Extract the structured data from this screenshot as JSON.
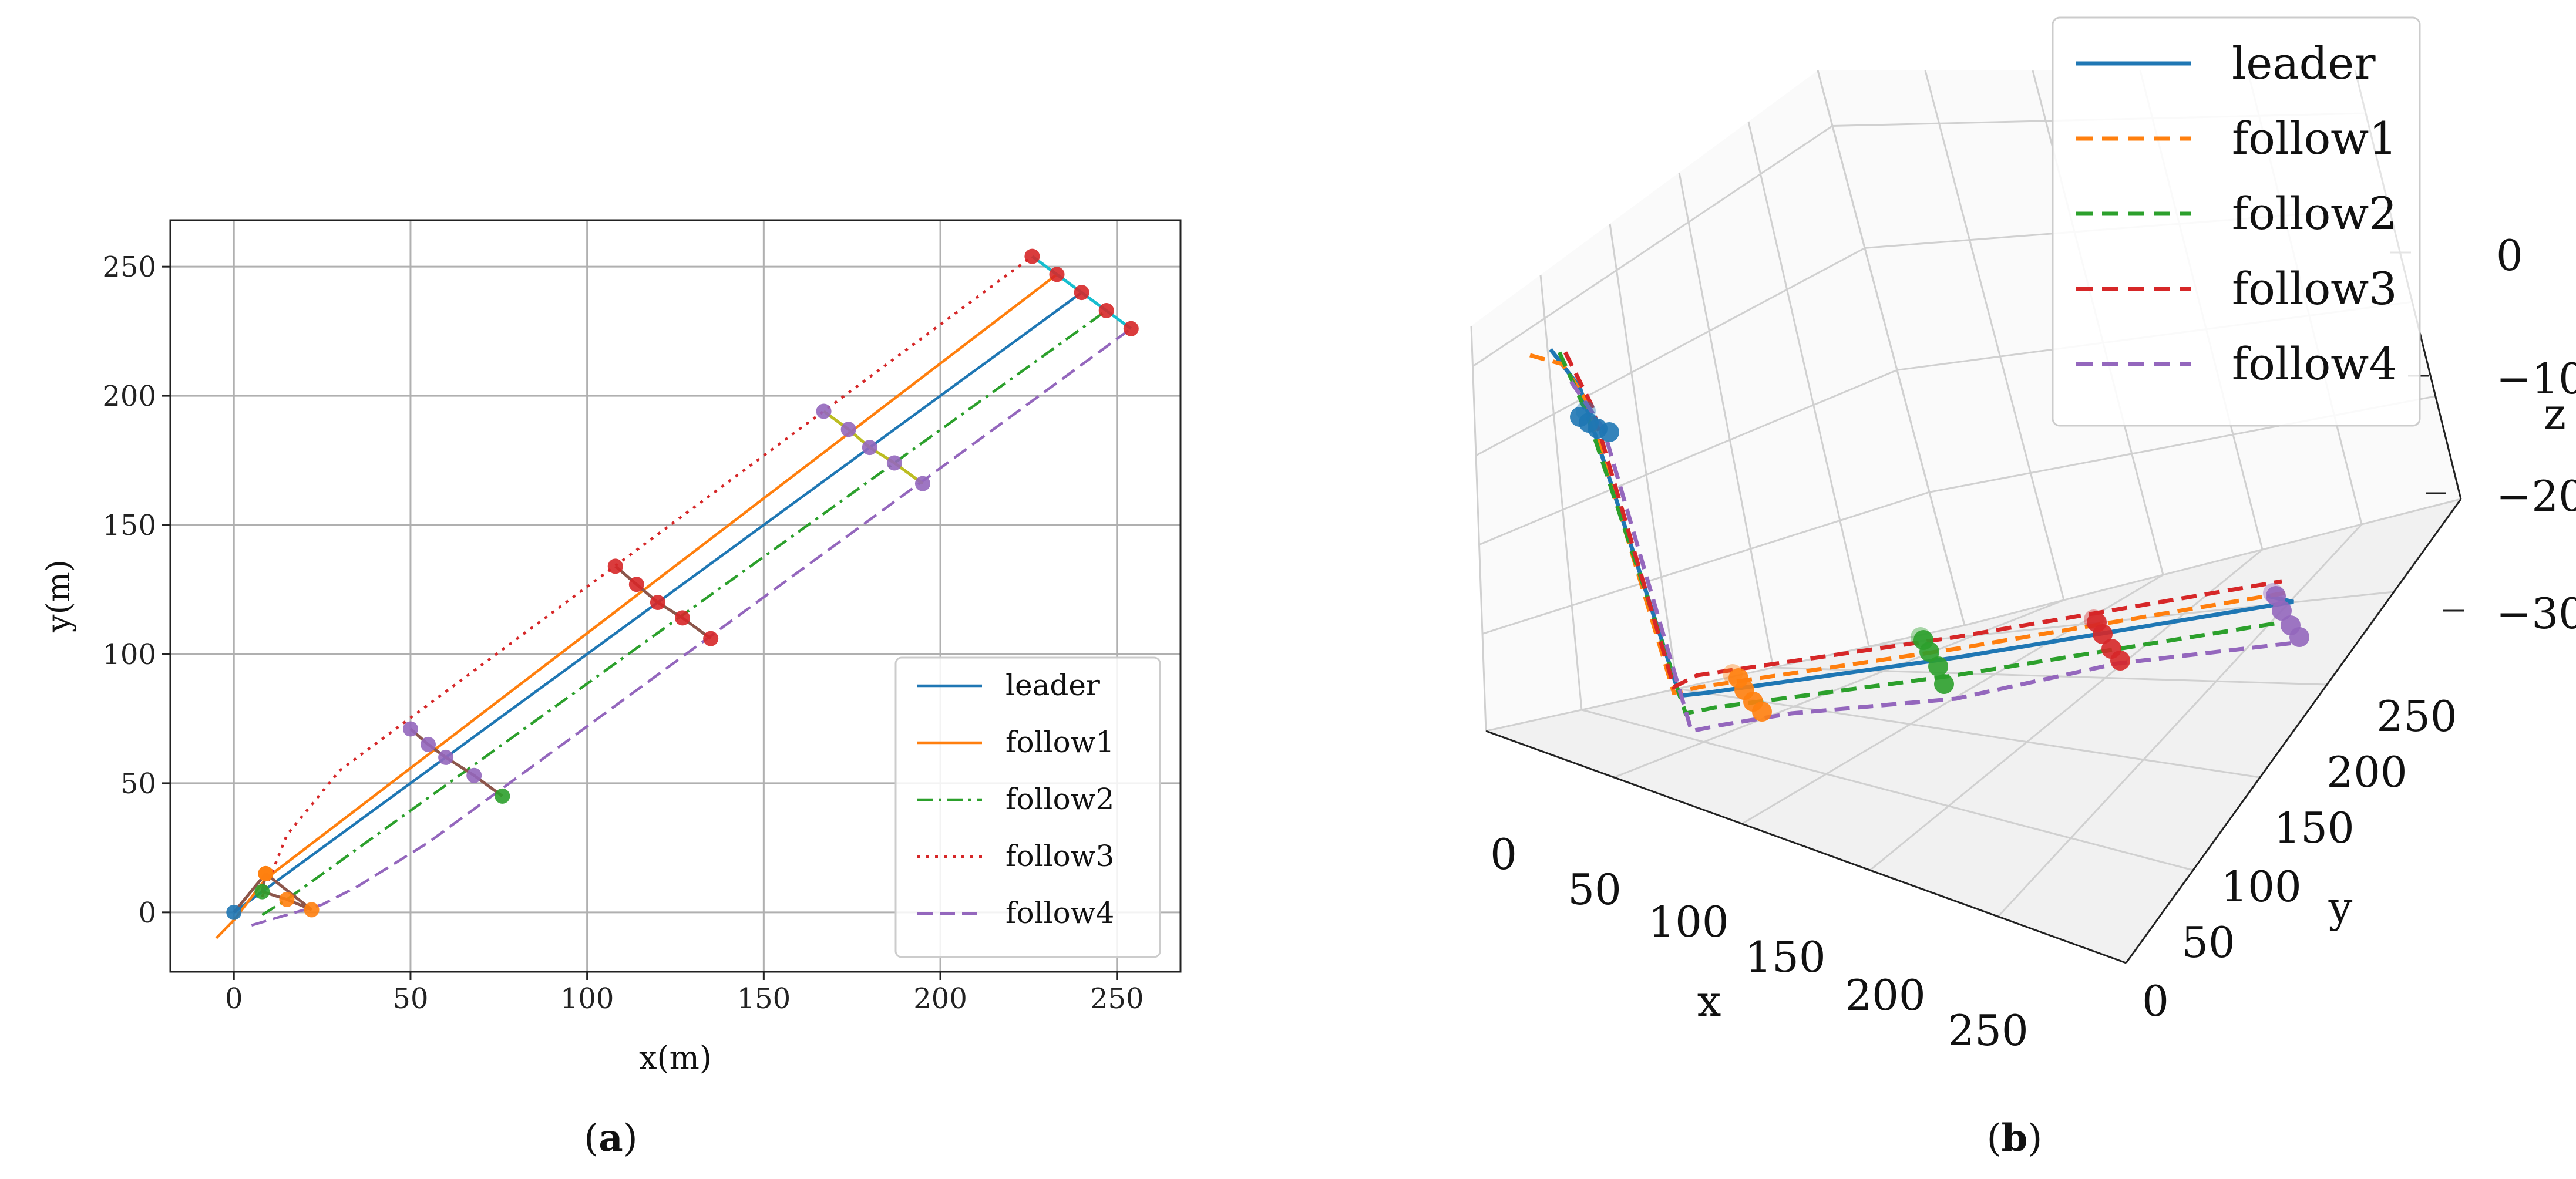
{
  "colors": {
    "leader": "#1f77b4",
    "follow1": "#ff7f0e",
    "follow2": "#2ca02c",
    "follow3": "#d62728",
    "follow4": "#9467bd",
    "brown": "#8c564b",
    "olive": "#bcbd22",
    "cyan": "#17becf",
    "grid": "#b0b0b0"
  },
  "chart_data": [
    {
      "type": "line",
      "panel": "(a)",
      "panel_letter": "a",
      "title": "",
      "xlabel": "x(m)",
      "ylabel": "y(m)",
      "xlim": [
        -18,
        268
      ],
      "ylim": [
        -23,
        268
      ],
      "xticks": [
        0,
        50,
        100,
        150,
        200,
        250
      ],
      "yticks": [
        0,
        50,
        100,
        150,
        200,
        250
      ],
      "grid": true,
      "legend_position": "lower-right",
      "series": [
        {
          "name": "leader",
          "style": "solid",
          "points": [
            [
              0,
              0
            ],
            [
              240,
              240
            ]
          ]
        },
        {
          "name": "follow1",
          "style": "solid",
          "points": [
            [
              -5,
              -10
            ],
            [
              0,
              -3
            ],
            [
              9,
              13
            ],
            [
              233,
              247
            ]
          ]
        },
        {
          "name": "follow2",
          "style": "dashdot",
          "points": [
            [
              8,
              -1
            ],
            [
              15,
              5
            ],
            [
              247,
              233
            ]
          ]
        },
        {
          "name": "follow3",
          "style": "dotted",
          "points": [
            [
              8,
              6
            ],
            [
              15,
              30
            ],
            [
              30,
              55
            ],
            [
              226,
              254
            ]
          ]
        },
        {
          "name": "follow4",
          "style": "dashed",
          "points": [
            [
              5,
              -5
            ],
            [
              25,
              3
            ],
            [
              35,
              10
            ],
            [
              55,
              27
            ],
            [
              254,
              226
            ]
          ]
        }
      ],
      "formation_markers": [
        {
          "color": "brown",
          "points": [
            [
              0,
              0
            ],
            [
              9,
              15
            ],
            [
              8,
              8
            ],
            [
              15,
              5
            ],
            [
              22,
              1
            ],
            [
              9,
              15
            ]
          ]
        },
        {
          "color": "brown",
          "points": [
            [
              50,
              71
            ],
            [
              55,
              65
            ],
            [
              60,
              60
            ],
            [
              68,
              53
            ],
            [
              76,
              45
            ]
          ]
        },
        {
          "color": "brown",
          "points": [
            [
              108,
              134
            ],
            [
              114,
              127
            ],
            [
              120,
              120
            ],
            [
              127,
              114
            ],
            [
              135,
              106
            ]
          ]
        },
        {
          "color": "olive",
          "points": [
            [
              167,
              194
            ],
            [
              174,
              187
            ],
            [
              180,
              180
            ],
            [
              187,
              174
            ],
            [
              195,
              166
            ]
          ]
        },
        {
          "color": "cyan",
          "points": [
            [
              226,
              254
            ],
            [
              233,
              247
            ],
            [
              240,
              240
            ],
            [
              247,
              233
            ],
            [
              254,
              226
            ]
          ]
        }
      ]
    },
    {
      "type": "line3d",
      "panel": "(b)",
      "panel_letter": "b",
      "xlabel": "x",
      "ylabel": "y",
      "zlabel": "z",
      "xticks": [
        0,
        50,
        100,
        150,
        200,
        250
      ],
      "yticks": [
        0,
        50,
        100,
        150,
        200,
        250
      ],
      "zticks": [
        0,
        -10,
        -20,
        -30
      ],
      "tick_labels": {
        "x": [
          "0",
          "50",
          "100",
          "150",
          "200",
          "250"
        ],
        "y": [
          "0",
          "50",
          "100",
          "150",
          "200",
          "250"
        ],
        "z": [
          "0",
          "−10",
          "−20",
          "−30"
        ]
      },
      "legend_position": "upper-right",
      "series": [
        {
          "name": "leader",
          "style": "solid"
        },
        {
          "name": "follow1",
          "style": "dashed"
        },
        {
          "name": "follow2",
          "style": "dashed"
        },
        {
          "name": "follow3",
          "style": "dashed"
        },
        {
          "name": "follow4",
          "style": "dashed"
        }
      ]
    }
  ]
}
